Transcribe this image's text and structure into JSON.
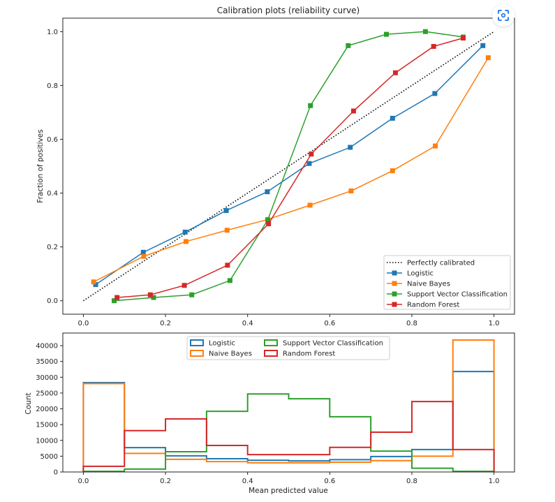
{
  "chart_data": [
    {
      "type": "line",
      "title": "Calibration plots  (reliability curve)",
      "xlabel": "",
      "ylabel": "Fraction of positives",
      "xlim": [
        -0.05,
        1.05
      ],
      "ylim": [
        -0.05,
        1.05
      ],
      "xticks": [
        "0.0",
        "0.2",
        "0.4",
        "0.6",
        "0.8",
        "1.0"
      ],
      "yticks": [
        "0.0",
        "0.2",
        "0.4",
        "0.6",
        "0.8",
        "1.0"
      ],
      "grid": false,
      "legend_position": "lower-right",
      "reference": {
        "name": "Perfectly calibrated",
        "x": [
          0,
          1
        ],
        "y": [
          0,
          1
        ],
        "style": "dotted",
        "color": "#000000"
      },
      "series": [
        {
          "name": "Logistic",
          "color": "#1f77b4",
          "x": [
            0.03,
            0.146,
            0.248,
            0.348,
            0.448,
            0.55,
            0.65,
            0.753,
            0.856,
            0.973
          ],
          "y": [
            0.06,
            0.18,
            0.255,
            0.335,
            0.405,
            0.51,
            0.57,
            0.678,
            0.77,
            0.948
          ]
        },
        {
          "name": "Naive Bayes",
          "color": "#ff7f0e",
          "x": [
            0.025,
            0.147,
            0.25,
            0.35,
            0.449,
            0.552,
            0.652,
            0.753,
            0.857,
            0.986
          ],
          "y": [
            0.07,
            0.165,
            0.22,
            0.262,
            0.302,
            0.355,
            0.408,
            0.483,
            0.575,
            0.903
          ]
        },
        {
          "name": "Support Vector Classification",
          "color": "#2ca02c",
          "x": [
            0.075,
            0.171,
            0.264,
            0.357,
            0.449,
            0.553,
            0.645,
            0.738,
            0.833,
            0.925
          ],
          "y": [
            0.0,
            0.012,
            0.022,
            0.075,
            0.3,
            0.725,
            0.948,
            0.99,
            1.0,
            0.98
          ]
        },
        {
          "name": "Random Forest",
          "color": "#d62728",
          "x": [
            0.082,
            0.163,
            0.246,
            0.351,
            0.451,
            0.555,
            0.658,
            0.76,
            0.853,
            0.925
          ],
          "y": [
            0.012,
            0.022,
            0.057,
            0.132,
            0.286,
            0.545,
            0.705,
            0.847,
            0.945,
            0.976
          ]
        }
      ]
    },
    {
      "type": "bar",
      "subtype": "step-histogram",
      "title": "",
      "xlabel": "Mean predicted value",
      "ylabel": "Count",
      "xlim": [
        -0.05,
        1.05
      ],
      "ylim": [
        0,
        44000
      ],
      "xticks": [
        "0.0",
        "0.2",
        "0.4",
        "0.6",
        "0.8",
        "1.0"
      ],
      "yticks": [
        "0",
        "5000",
        "10000",
        "15000",
        "20000",
        "25000",
        "30000",
        "35000",
        "40000"
      ],
      "grid": false,
      "legend_position": "top-center",
      "legend_columns": 2,
      "bin_edges": [
        0.0,
        0.1,
        0.2,
        0.3,
        0.4,
        0.5,
        0.6,
        0.7,
        0.8,
        0.9,
        1.0
      ],
      "series": [
        {
          "name": "Logistic",
          "color": "#1f77b4",
          "values": [
            28300,
            7700,
            5100,
            4200,
            3700,
            3500,
            3900,
            4900,
            7100,
            31800
          ]
        },
        {
          "name": "Naive Bayes",
          "color": "#ff7f0e",
          "values": [
            28000,
            5900,
            4000,
            3300,
            2900,
            2900,
            3100,
            3600,
            5000,
            41800
          ]
        },
        {
          "name": "Support Vector Classification",
          "color": "#2ca02c",
          "values": [
            200,
            900,
            6400,
            19200,
            24700,
            23200,
            17500,
            6600,
            1200,
            200
          ]
        },
        {
          "name": "Random Forest",
          "color": "#d62728",
          "values": [
            1800,
            13100,
            16800,
            8400,
            5500,
            5500,
            7800,
            12600,
            22300,
            7100
          ]
        }
      ]
    }
  ],
  "ui": {
    "lens_button": "visual-search-icon"
  }
}
